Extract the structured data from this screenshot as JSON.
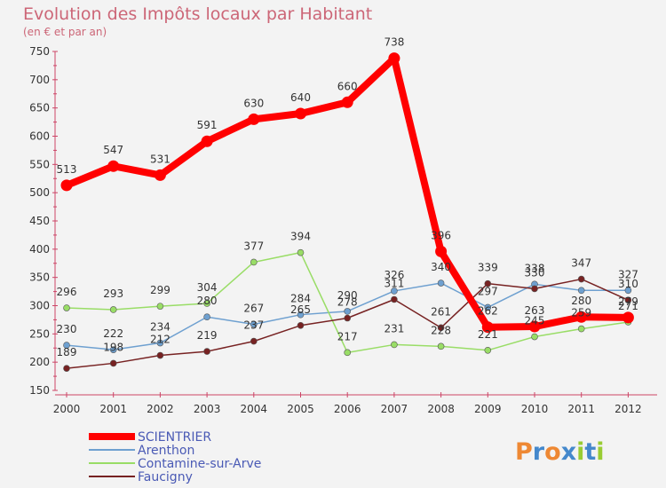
{
  "chart_data": {
    "type": "line",
    "title": "Evolution des Impôts locaux par Habitant",
    "subtitle": "(en € et par an)",
    "xlabel": "",
    "ylabel": "",
    "ylim": [
      150,
      750
    ],
    "yticks": [
      150,
      200,
      250,
      300,
      350,
      400,
      450,
      500,
      550,
      600,
      650,
      700,
      750
    ],
    "categories": [
      "2000",
      "2001",
      "2002",
      "2003",
      "2004",
      "2005",
      "2006",
      "2007",
      "2008",
      "2009",
      "2010",
      "2011",
      "2012"
    ],
    "grid": false,
    "legend_position": "bottom-left",
    "series": [
      {
        "name": "SCIENTRIER",
        "color": "#ff0000",
        "emphasis": true,
        "values": [
          513,
          547,
          531,
          591,
          630,
          640,
          660,
          738,
          396,
          262,
          263,
          280,
          279
        ],
        "labels": [
          "513",
          "547",
          "531",
          "591",
          "630",
          "640",
          "660",
          "738",
          "396",
          "262",
          "263",
          "280",
          "279"
        ]
      },
      {
        "name": "Arenthon",
        "color": "#6ea0d0",
        "values": [
          230,
          222,
          234,
          280,
          267,
          284,
          290,
          326,
          340,
          297,
          338,
          327,
          327
        ],
        "labels": [
          "230",
          "222",
          "234",
          "280",
          "267",
          "284",
          "290",
          "326",
          "340",
          "297",
          "338",
          "",
          "327"
        ]
      },
      {
        "name": "Contamine-sur-Arve",
        "color": "#99dd66",
        "values": [
          296,
          293,
          299,
          304,
          377,
          394,
          217,
          231,
          228,
          221,
          245,
          259,
          271
        ],
        "labels": [
          "296",
          "293",
          "299",
          "304",
          "377",
          "394",
          "217",
          "231",
          "228",
          "221",
          "245",
          "259",
          "271"
        ]
      },
      {
        "name": "Faucigny",
        "color": "#772222",
        "values": [
          189,
          198,
          212,
          219,
          237,
          265,
          278,
          311,
          261,
          339,
          330,
          347,
          310
        ],
        "labels": [
          "189",
          "198",
          "212",
          "219",
          "237",
          "265",
          "278",
          "311",
          "261",
          "339",
          "330",
          "347",
          "310"
        ]
      }
    ]
  },
  "brand": {
    "letters": [
      "P",
      "r",
      "o",
      "x",
      "i",
      "t",
      "i"
    ],
    "colors": [
      "#ee8833",
      "#4488cc",
      "#ee8833",
      "#4488cc",
      "#99cc33",
      "#4488cc",
      "#99cc33"
    ]
  }
}
